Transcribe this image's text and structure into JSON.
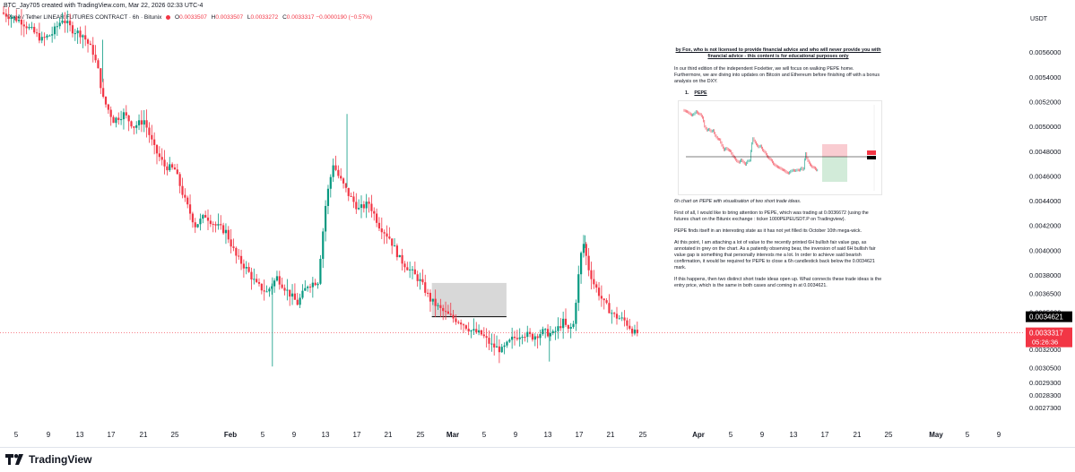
{
  "header": {
    "author_line": "BTC_Jay705 created with TradingView.com, Mar 22, 2026 02:33 UTC-4"
  },
  "legend": {
    "symbol": "Pepe / Tether LINEAR FUTURES CONTRACT · 6h · Bitunix",
    "open_label": "O",
    "open": "0.0033507",
    "high_label": "H",
    "high": "0.0033507",
    "low_label": "L",
    "low": "0.0033272",
    "close_label": "C",
    "close": "0.0033317",
    "change": "−0.0000190 (−0.57%)"
  },
  "colors": {
    "up": "#089981",
    "down": "#f23645",
    "box": "#d1d1d1",
    "line": "#000000"
  },
  "note": {
    "title": "by Fox, who is not licensed to provide financial advice and who will never provide you with financial advice - this content is for educational purposes only",
    "intro": "In our third edition of the independent Foxletter, we will focus on walking PEPE home. Furthermore, we are diving into updates on Bitcoin and Ethereum before finishing off with a bonus analysis on the DXY.",
    "section_num": "1.",
    "section_title": "PEPE",
    "caption": "6h chart on PEPE with visualisation of two short trade ideas.",
    "p1": "First of all, I would like to bring attention to PEPE, which was trading at 0.0036672 (using the futures chart on the Bitunix exchange : ticker 1000PEPEUSDT.P on Tradingview).",
    "p2": "PEPE finds itself in an interesting state as it has not yet filled its October 10th mega-wick.",
    "p3": "At this point, I am attaching a lot of value to the recently printed 6H bullish fair value gap, as annotated in grey on the chart. As a patiently observing bear, the inversion of said 6H bullish fair value gap is something that personally interests me a lot. In order to achieve said bearish confirmation, it would be required for PEPE to close a 6h candlestick back below the 0.0034621 mark.",
    "p4": "If this happens, then two distinct short trade ideas open up. What connects these trade ideas is the entry price, which is the same in both cases and coming in at 0.0034621."
  },
  "footer": {
    "brand": "TradingView"
  },
  "chart_data": {
    "type": "candlestick",
    "title": "Pepe / Tether LINEAR FUTURES CONTRACT · 6h · Bitunix",
    "ylabel": "USDT",
    "ylim": [
      0.00262,
      0.00592
    ],
    "y_ticks": [
      "0.0056000",
      "0.0054000",
      "0.0052000",
      "0.0050000",
      "0.0048000",
      "0.0046000",
      "0.0044000",
      "0.0042000",
      "0.0040000",
      "0.0038000",
      "0.0036500",
      "0.0035000",
      "0.0032000",
      "0.0030500",
      "0.0029300",
      "0.0028300",
      "0.0027300"
    ],
    "x_ticks": [
      "5",
      "9",
      "13",
      "17",
      "21",
      "25",
      "Feb",
      "5",
      "9",
      "13",
      "17",
      "21",
      "25",
      "Mar",
      "5",
      "9",
      "13",
      "17",
      "21",
      "25",
      "Apr",
      "5",
      "9",
      "13",
      "17",
      "21",
      "25",
      "May",
      "5",
      "9"
    ],
    "x_ticks_bold": [
      "Feb",
      "Mar",
      "Apr",
      "May"
    ],
    "price_labels": [
      {
        "value": "0.0034621",
        "level": 0.0034621,
        "style": "black"
      },
      {
        "value": "0.0033317",
        "level": 0.0033317,
        "style": "red",
        "countdown": "05:26:36"
      }
    ],
    "fair_value_gap": {
      "from_day": 41.9,
      "to_day": 49.2,
      "low": 0.003465,
      "high": 0.003735
    },
    "entry_line": {
      "from_day": 41.9,
      "to_day": 49.2,
      "value": 0.0034621
    },
    "series_waypoints": [
      [
        0,
        0.00592
      ],
      [
        2,
        0.00585
      ],
      [
        4,
        0.0057
      ],
      [
        5,
        0.00575
      ],
      [
        6,
        0.00587
      ],
      [
        7,
        0.00578
      ],
      [
        8,
        0.00574
      ],
      [
        9,
        0.0056
      ],
      [
        9.5,
        0.00545
      ],
      [
        10,
        0.00522
      ],
      [
        11,
        0.00505
      ],
      [
        12,
        0.0051
      ],
      [
        13,
        0.005
      ],
      [
        14,
        0.00505
      ],
      [
        15,
        0.00482
      ],
      [
        16,
        0.00468
      ],
      [
        17,
        0.00465
      ],
      [
        18,
        0.0044
      ],
      [
        19,
        0.0042
      ],
      [
        20,
        0.00428
      ],
      [
        21,
        0.0042
      ],
      [
        22,
        0.00415
      ],
      [
        23,
        0.00395
      ],
      [
        24,
        0.00385
      ],
      [
        25,
        0.00372
      ],
      [
        26,
        0.00366
      ],
      [
        27,
        0.00378
      ],
      [
        28,
        0.00367
      ],
      [
        29,
        0.00357
      ],
      [
        30,
        0.00372
      ],
      [
        31,
        0.00375
      ],
      [
        31.8,
        0.0044
      ],
      [
        32.5,
        0.0047
      ],
      [
        33,
        0.0046
      ],
      [
        34,
        0.00445
      ],
      [
        35,
        0.00433
      ],
      [
        36,
        0.00438
      ],
      [
        37,
        0.0042
      ],
      [
        38,
        0.0041
      ],
      [
        39,
        0.00393
      ],
      [
        40,
        0.00384
      ],
      [
        41,
        0.00375
      ],
      [
        42,
        0.0036
      ],
      [
        43,
        0.00352
      ],
      [
        44,
        0.00346
      ],
      [
        45,
        0.00342
      ],
      [
        46,
        0.00335
      ],
      [
        47,
        0.00332
      ],
      [
        48,
        0.00323
      ],
      [
        49,
        0.00319
      ],
      [
        50,
        0.00328
      ],
      [
        51,
        0.00333
      ],
      [
        52,
        0.0033
      ],
      [
        53,
        0.00334
      ],
      [
        54,
        0.00332
      ],
      [
        54.5,
        0.00337
      ],
      [
        55,
        0.00342
      ],
      [
        55.5,
        0.00335
      ],
      [
        56,
        0.0034
      ],
      [
        56.7,
        0.00395
      ],
      [
        57,
        0.00405
      ],
      [
        57.5,
        0.00385
      ],
      [
        58,
        0.00373
      ],
      [
        58.5,
        0.00365
      ],
      [
        59,
        0.00357
      ],
      [
        60,
        0.00347
      ],
      [
        61,
        0.00343
      ],
      [
        61.5,
        0.00338
      ],
      [
        62,
        0.00333
      ]
    ],
    "spikes": [
      {
        "day": 26.3,
        "low": 0.00306,
        "high": 0.00378
      },
      {
        "day": 33.6,
        "high": 0.0051
      },
      {
        "day": 9.7,
        "high": 0.0057
      },
      {
        "day": 53.4,
        "low": 0.0031
      },
      {
        "day": 56.9,
        "high": 0.00412
      }
    ],
    "last_close": 0.0033317
  }
}
